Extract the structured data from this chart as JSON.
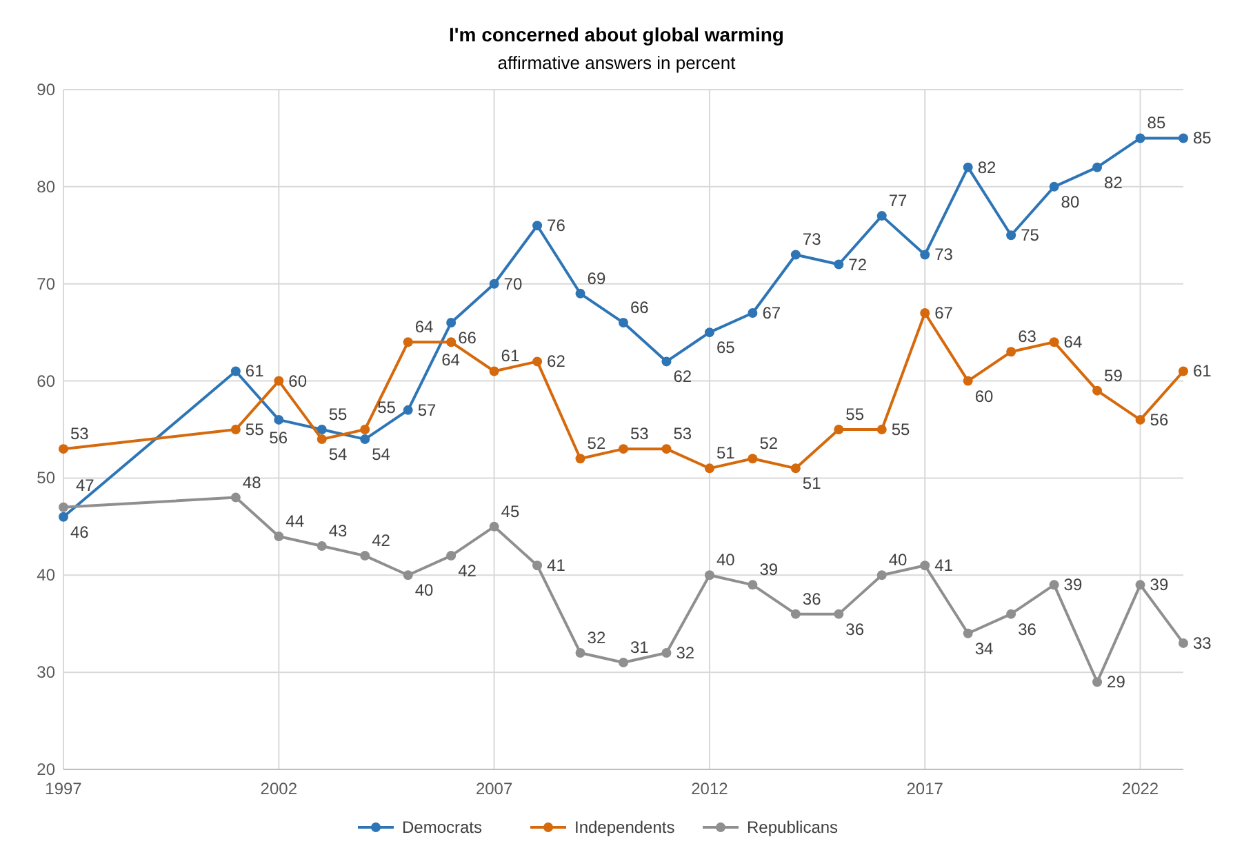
{
  "chart_data": {
    "type": "line",
    "title": "I'm concerned about global warming",
    "subtitle": "affirmative answers in percent",
    "x": [
      1997,
      2001,
      2002,
      2003,
      2004,
      2005,
      2006,
      2007,
      2008,
      2009,
      2010,
      2011,
      2012,
      2013,
      2014,
      2015,
      2016,
      2017,
      2018,
      2019,
      2020,
      2021,
      2022,
      2023
    ],
    "series": [
      {
        "name": "Democrats",
        "color": "#2e75b6",
        "values": [
          46,
          61,
          56,
          55,
          54,
          57,
          66,
          70,
          76,
          69,
          66,
          62,
          65,
          67,
          73,
          72,
          77,
          73,
          82,
          75,
          80,
          82,
          85,
          85
        ]
      },
      {
        "name": "Independents",
        "color": "#d5690c",
        "values": [
          53,
          55,
          60,
          54,
          55,
          64,
          64,
          61,
          62,
          52,
          53,
          53,
          51,
          52,
          51,
          55,
          55,
          67,
          60,
          63,
          64,
          59,
          56,
          61
        ]
      },
      {
        "name": "Republicans",
        "color": "#8f8f8f",
        "values": [
          47,
          48,
          44,
          43,
          42,
          40,
          42,
          45,
          41,
          32,
          31,
          32,
          40,
          39,
          36,
          36,
          40,
          41,
          34,
          36,
          39,
          29,
          39,
          33
        ]
      }
    ],
    "xlim": [
      1997,
      2023
    ],
    "xticks": [
      1997,
      2002,
      2007,
      2012,
      2017,
      2022
    ],
    "ylim": [
      20,
      90
    ],
    "yticks": [
      20,
      30,
      40,
      50,
      60,
      70,
      80,
      90
    ],
    "grid": true,
    "legend": "bottom",
    "marker": "circle",
    "line_style": "solid",
    "data_labels": true
  }
}
